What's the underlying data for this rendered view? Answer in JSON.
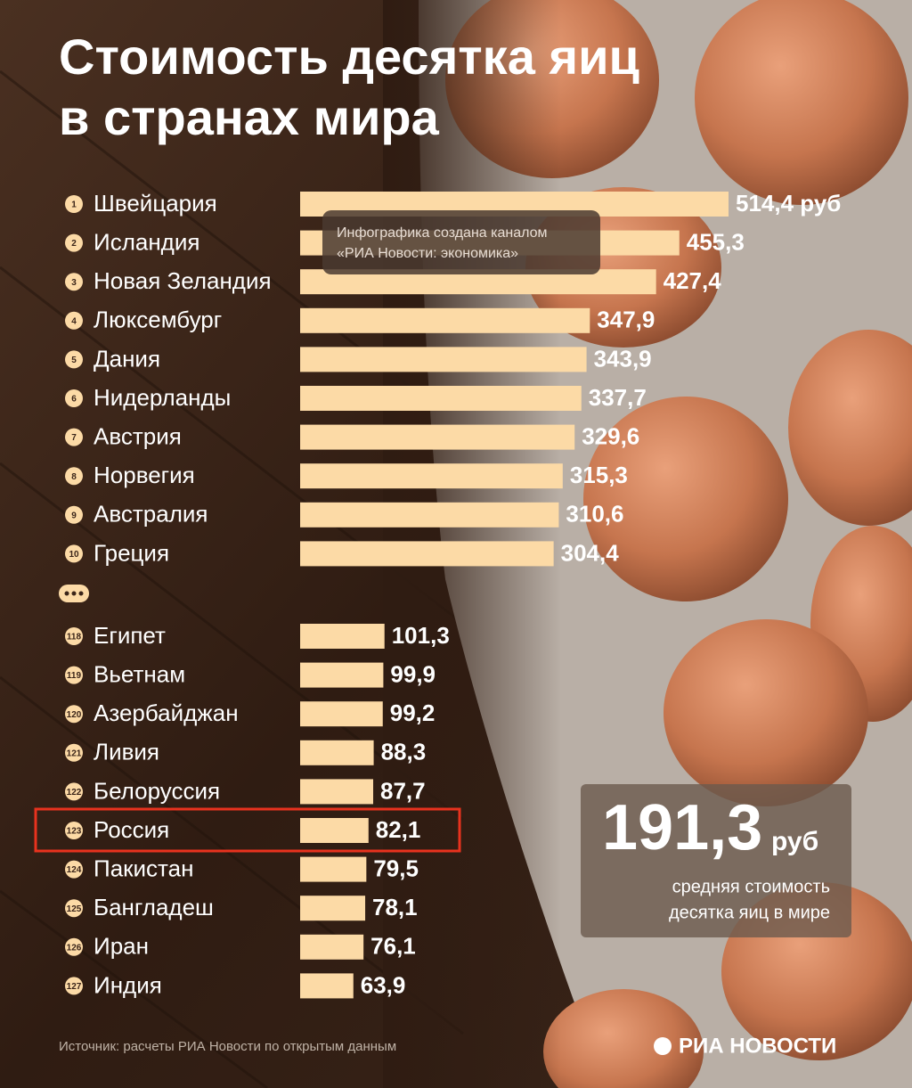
{
  "chart_data": {
    "type": "bar",
    "title": [
      "Стоимость десятка яиц",
      "в странах мира"
    ],
    "ranks": [
      1,
      2,
      3,
      4,
      5,
      6,
      7,
      8,
      9,
      10,
      118,
      119,
      120,
      121,
      122,
      123,
      124,
      125,
      126,
      127
    ],
    "categories": [
      "Швейцария",
      "Исландия",
      "Новая Зеландия",
      "Люксембург",
      "Дания",
      "Нидерланды",
      "Австрия",
      "Норвегия",
      "Австралия",
      "Греция",
      "Египет",
      "Вьетнам",
      "Азербайджан",
      "Ливия",
      "Белоруссия",
      "Россия",
      "Пакистан",
      "Бангладеш",
      "Иран",
      "Индия"
    ],
    "values": [
      514.4,
      455.3,
      427.4,
      347.9,
      343.9,
      337.7,
      329.6,
      315.3,
      310.6,
      304.4,
      101.3,
      99.9,
      99.2,
      88.3,
      87.7,
      82.1,
      79.5,
      78.1,
      76.1,
      63.9
    ],
    "value_labels": [
      "514,4 руб",
      "455,3",
      "427,4",
      "347,9",
      "343,9",
      "337,7",
      "329,6",
      "315,3",
      "310,6",
      "304,4",
      "101,3",
      "99,9",
      "99,2",
      "88,3",
      "87,7",
      "82,1",
      "79,5",
      "78,1",
      "76,1",
      "63,9"
    ],
    "color": "#fcdaa6",
    "highlight_color": "#e8321e",
    "highlight_index": 15,
    "watermark": [
      "Инфографика создана каналом",
      "«РИА Новости: экономика»"
    ],
    "average": {
      "label": "191,3",
      "unit": "руб",
      "note": [
        "средняя стоимость",
        "десятка яиц в мире"
      ]
    },
    "source": "Источник: расчеты РИА Новости по открытым данным",
    "logo": "РИА НОВОСТИ"
  }
}
